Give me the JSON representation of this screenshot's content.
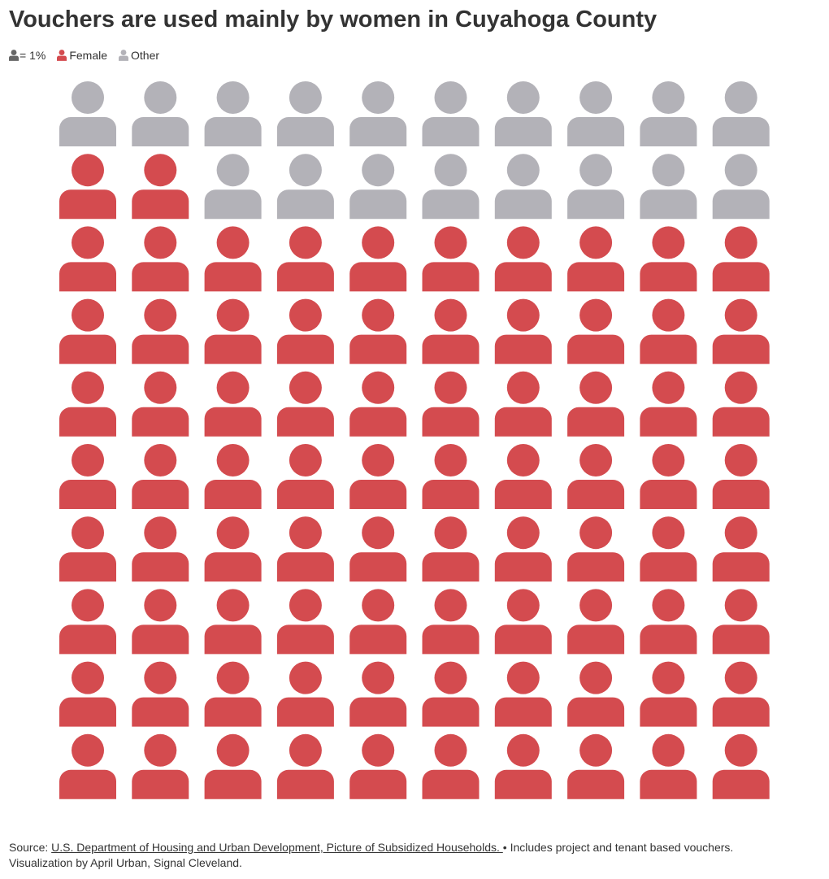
{
  "title": "Vouchers are used mainly by women in Cuyahoga County",
  "legend": {
    "scale_label": "= 1%",
    "female_label": "Female",
    "other_label": "Other"
  },
  "colors": {
    "female": "#d44b4f",
    "other": "#b3b2b8",
    "scale_icon": "#666666"
  },
  "chart_data": {
    "type": "waffle",
    "unit": "1%",
    "grid": {
      "rows": 10,
      "cols": 10
    },
    "series": [
      {
        "name": "Female",
        "values": [
          82
        ]
      },
      {
        "name": "Other",
        "values": [
          18
        ]
      }
    ]
  },
  "footer": {
    "source_prefix": "Source: ",
    "source_link": "U.S. Department of Housing and Urban Development, Picture of Subsidized Households. ",
    "note": "• Includes project and tenant based vouchers.",
    "credit": "Visualization by April Urban, Signal Cleveland."
  }
}
